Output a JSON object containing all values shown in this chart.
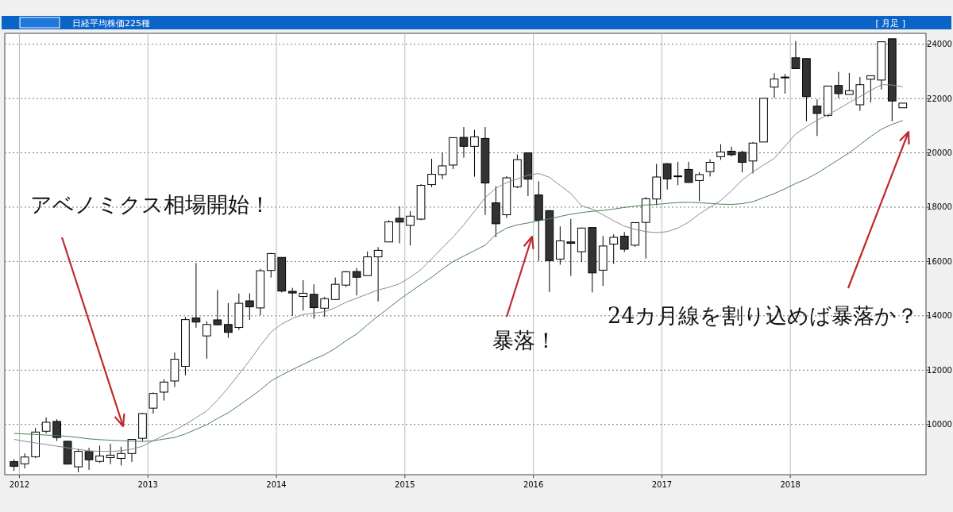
{
  "chart_data": {
    "type": "candlestick",
    "title": "日経平均株価225種",
    "subtitle": "[ 月足 ]",
    "x": [
      "2011-12-16",
      "2012-01-16",
      "2012-02-16",
      "2012-03-16",
      "2012-04-16",
      "2012-05-16",
      "2012-06-16",
      "2012-07-16",
      "2012-08-16",
      "2012-09-16",
      "2012-10-16",
      "2012-11-16",
      "2012-12-16",
      "2013-01-16",
      "2013-02-16",
      "2013-03-16",
      "2013-04-16",
      "2013-05-16",
      "2013-06-16",
      "2013-07-16",
      "2013-08-16",
      "2013-09-16",
      "2013-10-16",
      "2013-11-16",
      "2013-12-16",
      "2014-01-16",
      "2014-02-16",
      "2014-03-16",
      "2014-04-16",
      "2014-05-16",
      "2014-06-16",
      "2014-07-16",
      "2014-08-16",
      "2014-09-16",
      "2014-10-16",
      "2014-11-16",
      "2014-12-16",
      "2015-01-16",
      "2015-02-16",
      "2015-03-16",
      "2015-04-16",
      "2015-05-16",
      "2015-06-16",
      "2015-07-16",
      "2015-08-16",
      "2015-09-16",
      "2015-10-16",
      "2015-11-16",
      "2015-12-16",
      "2016-01-16",
      "2016-02-16",
      "2016-03-16",
      "2016-04-16",
      "2016-05-16",
      "2016-06-16",
      "2016-07-16",
      "2016-08-16",
      "2016-09-16",
      "2016-10-16",
      "2016-11-16",
      "2016-12-16",
      "2017-01-16",
      "2017-02-16",
      "2017-03-16",
      "2017-04-16",
      "2017-05-16",
      "2017-06-16",
      "2017-07-16",
      "2017-08-16",
      "2017-09-16",
      "2017-10-16",
      "2017-11-16",
      "2017-12-16",
      "2018-01-16",
      "2018-02-16",
      "2018-03-16",
      "2018-04-16",
      "2018-05-16",
      "2018-06-16",
      "2018-07-16",
      "2018-08-16",
      "2018-09-16",
      "2018-10-16",
      "2018-11-16"
    ],
    "ohlc": [
      [
        8630,
        8720,
        8290,
        8460
      ],
      [
        8550,
        8930,
        8380,
        8800
      ],
      [
        8810,
        9870,
        8760,
        9720
      ],
      [
        9750,
        10260,
        9670,
        10080
      ],
      [
        10110,
        10190,
        9390,
        9520
      ],
      [
        9380,
        9400,
        8530,
        8540
      ],
      [
        8440,
        9100,
        8240,
        9010
      ],
      [
        9000,
        9140,
        8330,
        8700
      ],
      [
        8640,
        9220,
        8590,
        8840
      ],
      [
        8780,
        9290,
        8540,
        8870
      ],
      [
        8750,
        9180,
        8490,
        8930
      ],
      [
        8930,
        9460,
        8620,
        9450
      ],
      [
        9490,
        10430,
        9390,
        10400
      ],
      [
        10600,
        11180,
        10400,
        11140
      ],
      [
        11190,
        11660,
        10880,
        11560
      ],
      [
        11600,
        12650,
        11380,
        12400
      ],
      [
        12140,
        13960,
        11810,
        13860
      ],
      [
        13920,
        15940,
        13560,
        13770
      ],
      [
        13260,
        13800,
        12420,
        13680
      ],
      [
        13850,
        14950,
        13650,
        13670
      ],
      [
        13680,
        14470,
        13190,
        13390
      ],
      [
        13570,
        14820,
        13480,
        14460
      ],
      [
        14550,
        14830,
        13850,
        14330
      ],
      [
        14290,
        15730,
        14020,
        15660
      ],
      [
        15670,
        16320,
        15410,
        16290
      ],
      [
        16150,
        16160,
        14860,
        14910
      ],
      [
        14900,
        15030,
        14000,
        14840
      ],
      [
        14710,
        15310,
        14200,
        14830
      ],
      [
        14790,
        15160,
        13890,
        14300
      ],
      [
        14280,
        14700,
        13960,
        14630
      ],
      [
        14600,
        15410,
        14600,
        15160
      ],
      [
        15130,
        15650,
        15060,
        15620
      ],
      [
        15630,
        15760,
        14750,
        15420
      ],
      [
        15480,
        16370,
        15480,
        16170
      ],
      [
        16170,
        16530,
        14530,
        16410
      ],
      [
        16720,
        17520,
        16720,
        17460
      ],
      [
        17590,
        18030,
        16670,
        17450
      ],
      [
        17330,
        17850,
        16590,
        17670
      ],
      [
        17560,
        18850,
        17520,
        18800
      ],
      [
        18830,
        19780,
        18740,
        19210
      ],
      [
        19200,
        20010,
        19030,
        19520
      ],
      [
        19550,
        20570,
        19400,
        20560
      ],
      [
        20570,
        20950,
        19820,
        20240
      ],
      [
        20240,
        20850,
        19120,
        20590
      ],
      [
        20530,
        20950,
        17710,
        18890
      ],
      [
        18160,
        18770,
        16900,
        17390
      ],
      [
        17720,
        19140,
        17600,
        19080
      ],
      [
        18750,
        19940,
        18700,
        19750
      ],
      [
        20000,
        20010,
        18410,
        19030
      ],
      [
        18450,
        18950,
        16020,
        17520
      ],
      [
        17870,
        17900,
        14870,
        16030
      ],
      [
        16090,
        17290,
        15880,
        16760
      ],
      [
        16720,
        17570,
        15470,
        16670
      ],
      [
        16360,
        17250,
        15980,
        17230
      ],
      [
        17250,
        17250,
        14860,
        15580
      ],
      [
        15680,
        16940,
        15100,
        16570
      ],
      [
        16640,
        17000,
        15910,
        16890
      ],
      [
        16930,
        17080,
        16350,
        16450
      ],
      [
        16600,
        17430,
        16540,
        17430
      ],
      [
        17440,
        18370,
        16110,
        18310
      ],
      [
        18300,
        19590,
        18070,
        19110
      ],
      [
        19600,
        19620,
        18650,
        19040
      ],
      [
        19150,
        19670,
        18810,
        19120
      ],
      [
        19390,
        19670,
        18900,
        18910
      ],
      [
        18980,
        19290,
        18220,
        19200
      ],
      [
        19310,
        19760,
        19130,
        19650
      ],
      [
        19860,
        20320,
        19740,
        20030
      ],
      [
        20060,
        20230,
        19870,
        19930
      ],
      [
        20020,
        20080,
        19280,
        19650
      ],
      [
        19700,
        20400,
        19240,
        20360
      ],
      [
        20400,
        22010,
        20400,
        22010
      ],
      [
        22420,
        22930,
        22020,
        22720
      ],
      [
        22790,
        22900,
        22180,
        22760
      ],
      [
        23500,
        24110,
        23090,
        23100
      ],
      [
        23470,
        23490,
        21160,
        22070
      ],
      [
        21720,
        21970,
        20620,
        21450
      ],
      [
        21380,
        22460,
        21320,
        22460
      ],
      [
        22480,
        22980,
        22020,
        22180
      ],
      [
        22150,
        22940,
        22150,
        22290
      ],
      [
        21770,
        22790,
        21550,
        22510
      ],
      [
        22710,
        22840,
        21850,
        22840
      ],
      [
        22680,
        24090,
        22330,
        24090
      ],
      [
        24200,
        24200,
        21160,
        21910
      ],
      [
        21660,
        21830,
        21660,
        21830
      ]
    ],
    "series": [
      {
        "type": "line",
        "color": "#8c8c8c",
        "values": [
          9450,
          9380,
          9320,
          9260,
          9200,
          9140,
          9080,
          9030,
          9010,
          9010,
          9030,
          9090,
          9200,
          9400,
          9600,
          9780,
          10000,
          10250,
          10500,
          10900,
          11350,
          11850,
          12350,
          12900,
          13400,
          13700,
          13900,
          14050,
          14100,
          14150,
          14300,
          14500,
          14650,
          14800,
          14950,
          15050,
          15180,
          15420,
          15700,
          16100,
          16500,
          16900,
          17350,
          17850,
          18350,
          18700,
          18900,
          19040,
          19180,
          19240,
          19100,
          18800,
          18500,
          18050,
          17930,
          17720,
          17500,
          17300,
          17180,
          17100,
          17060,
          17100,
          17230,
          17450,
          17750,
          18000,
          18250,
          18600,
          19000,
          19300,
          19550,
          19800,
          20250,
          20700,
          20960,
          21200,
          21400,
          21620,
          21850,
          22070,
          22300,
          22510,
          22500,
          22430
        ]
      },
      {
        "type": "line",
        "color": "#4f7f4f",
        "values": [
          9670,
          9650,
          9630,
          9610,
          9590,
          9560,
          9520,
          9470,
          9440,
          9420,
          9400,
          9390,
          9370,
          9400,
          9460,
          9520,
          9650,
          9820,
          9990,
          10220,
          10430,
          10700,
          10980,
          11270,
          11600,
          11820,
          12020,
          12210,
          12400,
          12570,
          12800,
          13080,
          13330,
          13670,
          13990,
          14290,
          14600,
          14880,
          15150,
          15420,
          15720,
          16000,
          16200,
          16400,
          16600,
          17000,
          17230,
          17350,
          17420,
          17500,
          17570,
          17660,
          17740,
          17800,
          17850,
          17880,
          17930,
          17990,
          18040,
          18080,
          18100,
          18140,
          18170,
          18180,
          18160,
          18140,
          18110,
          18100,
          18130,
          18200,
          18350,
          18500,
          18680,
          18870,
          19040,
          19250,
          19500,
          19750,
          20000,
          20300,
          20600,
          20870,
          21050,
          21190
        ]
      }
    ],
    "xlim": [
      "2011-11-20",
      "2019-01-21"
    ],
    "xticks": [
      "2012",
      "2013",
      "2014",
      "2015",
      "2016",
      "2017",
      "2018"
    ],
    "ylim": [
      8150,
      24400
    ],
    "yticks": [
      10000,
      12000,
      14000,
      16000,
      18000,
      20000,
      22000,
      24000
    ],
    "grid": true,
    "annotations": [
      "アベノミクス相場開始！",
      "暴落！",
      "24カ月線を割り込めば暴落か？"
    ]
  }
}
